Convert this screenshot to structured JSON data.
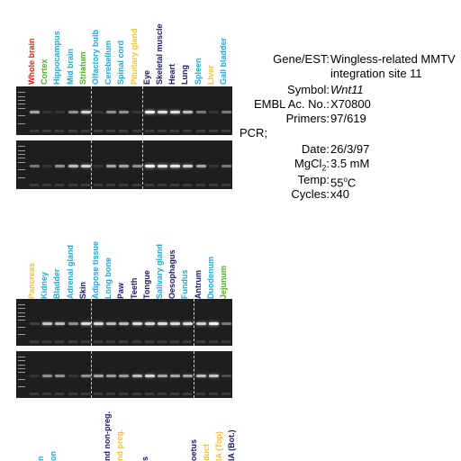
{
  "figure": {
    "top_lanes": [
      {
        "label": "Whole brain",
        "color": "#e0261b"
      },
      {
        "label": "Cortex",
        "color": "#4caf1f"
      },
      {
        "label": "Hippocampus",
        "color": "#1ea8d8"
      },
      {
        "label": "Mid brain",
        "color": "#1ea8d8"
      },
      {
        "label": "Striatum",
        "color": "#4caf1f"
      },
      {
        "label": "Olfactory bulb",
        "color": "#1ea8d8"
      },
      {
        "label": "Cerebellum",
        "color": "#1ea8d8"
      },
      {
        "label": "Spinal cord",
        "color": "#1ea8d8"
      },
      {
        "label": "Pituitary gland",
        "color": "#f2c230"
      },
      {
        "label": "Eye",
        "color": "#1a1a6a"
      },
      {
        "label": "Skeletal muscle",
        "color": "#1a1a6a"
      },
      {
        "label": "Heart",
        "color": "#1a1a6a"
      },
      {
        "label": "Lung",
        "color": "#1a1a6a"
      },
      {
        "label": "Spleen",
        "color": "#1ea8d8"
      },
      {
        "label": "Liver",
        "color": "#f2c230"
      },
      {
        "label": "Gall bladder",
        "color": "#1ea8d8"
      }
    ],
    "mid_lanes": [
      {
        "label": "Pancreas",
        "color": "#f2c230"
      },
      {
        "label": "Kidney",
        "color": "#1ea8d8"
      },
      {
        "label": "Bladder",
        "color": "#1ea8d8"
      },
      {
        "label": "Adrenal gland",
        "color": "#1ea8d8"
      },
      {
        "label": "Skin",
        "color": "#1a1a6a"
      },
      {
        "label": "Adipose tissue",
        "color": "#1ea8d8"
      },
      {
        "label": "Long bone",
        "color": "#1ea8d8"
      },
      {
        "label": "Paw",
        "color": "#1a1a6a"
      },
      {
        "label": "Teeth",
        "color": "#1a1a6a"
      },
      {
        "label": "Tongue",
        "color": "#1a1a6a"
      },
      {
        "label": "Salivary gland",
        "color": "#1ea8d8"
      },
      {
        "label": "Oesophagus",
        "color": "#1a1a6a"
      },
      {
        "label": "Fundus",
        "color": "#1ea8d8"
      },
      {
        "label": "Antrum",
        "color": "#1a1a6a"
      },
      {
        "label": "Duodenum",
        "color": "#1ea8d8"
      },
      {
        "label": "Jejunum",
        "color": "#4caf1f"
      }
    ],
    "bottom_lanes": [
      {
        "label": "n",
        "color": "#1ea8d8"
      },
      {
        "label": "on",
        "color": "#1ea8d8"
      },
      {
        "label": "nd non-preg.",
        "color": "#1a1a6a"
      },
      {
        "label": "nd preg.",
        "color": "#f2c230"
      },
      {
        "label": "s",
        "color": "#1a1a6a"
      },
      {
        "label": "oetus",
        "color": "#1a1a6a"
      },
      {
        "label": "duct",
        "color": "#f2c230"
      },
      {
        "label": "IA (Top)",
        "color": "#f2c230"
      },
      {
        "label": "IA (Bot.)",
        "color": "#1a1a6a"
      }
    ],
    "top_gel_a_intensity": [
      0.6,
      0.1,
      0.1,
      0.5,
      0.8,
      0.1,
      0.5,
      0.5,
      0.1,
      0.95,
      0.85,
      0.85,
      0.7,
      0.4,
      0.1,
      0.4
    ],
    "top_gel_b_intensity": [
      0.4,
      0.1,
      0.5,
      0.7,
      0.8,
      0.1,
      0.6,
      0.6,
      0.5,
      0.95,
      0.9,
      0.9,
      0.8,
      0.6,
      0.1,
      0.4
    ],
    "mid_gel_a_intensity": [
      0.15,
      0.75,
      0.7,
      0.5,
      0.85,
      0.85,
      0.7,
      0.7,
      0.85,
      0.85,
      0.85,
      0.85,
      0.85,
      0.8,
      0.95,
      0.4
    ],
    "mid_gel_b_intensity": [
      0.1,
      0.5,
      0.5,
      0.1,
      0.5,
      0.6,
      0.55,
      0.55,
      0.7,
      0.8,
      0.6,
      0.6,
      0.6,
      0.7,
      0.75,
      0.2
    ]
  },
  "info": {
    "gene_label": "Gene/EST:",
    "gene_line1": "Wingless-related MMTV",
    "gene_line2": "integration site 11",
    "symbol_label": "Symbol:",
    "symbol_value": "Wnt11",
    "embl_label": "EMBL Ac. No.:",
    "embl_value": "X70800",
    "primers_label": "Primers:",
    "primers_value": "97/619",
    "pcr_label": "PCR;",
    "date_label": "Date:",
    "date_value": "26/3/97",
    "mgcl_label": "MgCl",
    "mgcl_sub": "2",
    "mgcl_colon": ":",
    "mgcl_value": "3.5 mM",
    "temp_label": "Temp:",
    "temp_value": "55",
    "temp_sup": "o",
    "temp_unit": "C",
    "cycles_label": "Cycles:",
    "cycles_value": "x40"
  }
}
